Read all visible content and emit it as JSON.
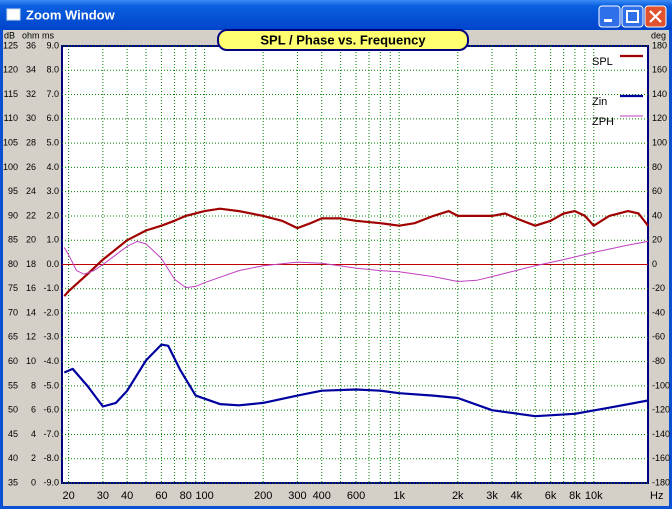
{
  "window": {
    "title": "Zoom Window"
  },
  "chart_data": {
    "type": "line",
    "title": "SPL / Phase vs. Frequency",
    "x_label": "Hz",
    "y_label": "dB",
    "ohm_label": "ohm",
    "ms_label": "ms",
    "y2_label": "deg",
    "log_x": true,
    "grid": true,
    "grid_color": "#008000",
    "zero_line_color": "#c00000",
    "xlim": [
      18.5,
      19000
    ],
    "xticks": [
      20,
      30,
      40,
      60,
      80,
      100,
      200,
      300,
      400,
      600,
      {
        "value": 1000,
        "label": "1k"
      },
      {
        "value": 2000,
        "label": "2k"
      },
      {
        "value": 3000,
        "label": "3k"
      },
      {
        "value": 4000,
        "label": "4k"
      },
      {
        "value": 6000,
        "label": "6k"
      },
      {
        "value": 8000,
        "label": "8k"
      },
      {
        "value": 10000,
        "label": "10k"
      }
    ],
    "xminor": [
      50,
      70,
      90,
      500,
      700,
      800,
      900,
      5000,
      7000,
      9000
    ],
    "ylim": [
      35,
      125
    ],
    "yticks": [
      125,
      120,
      115,
      110,
      105,
      100,
      95,
      90,
      85,
      80,
      75,
      70,
      65,
      60,
      55,
      50,
      45,
      40,
      35
    ],
    "ohm_lim": [
      0,
      36
    ],
    "ohm_ticks": [
      36,
      34,
      32,
      30,
      28,
      26,
      24,
      22,
      20,
      18,
      16,
      14,
      12,
      10,
      8,
      6,
      4,
      2,
      0
    ],
    "ms_lim": [
      -9,
      9
    ],
    "ms_ticks": [
      {
        "value": 9,
        "label": "9.0"
      },
      {
        "value": 8,
        "label": "8.0"
      },
      {
        "value": 7,
        "label": "7.0"
      },
      {
        "value": 6,
        "label": "6.0"
      },
      {
        "value": 5,
        "label": "5.0"
      },
      {
        "value": 4,
        "label": "4.0"
      },
      {
        "value": 3,
        "label": "3.0"
      },
      {
        "value": 2,
        "label": "2.0"
      },
      {
        "value": 1,
        "label": "1.0"
      },
      {
        "value": 0,
        "label": "0.0"
      },
      {
        "value": -1,
        "label": "-1.0"
      },
      {
        "value": -2,
        "label": "-2.0"
      },
      {
        "value": -3,
        "label": "-3.0"
      },
      {
        "value": -4,
        "label": "-4.0"
      },
      {
        "value": -5,
        "label": "-5.0"
      },
      {
        "value": -6,
        "label": "-6.0"
      },
      {
        "value": -7,
        "label": "-7.0"
      },
      {
        "value": -8,
        "label": "-8.0"
      },
      {
        "value": -9,
        "label": "-9.0"
      }
    ],
    "y2lim": [
      -180,
      180
    ],
    "y2ticks": [
      180,
      160,
      140,
      120,
      100,
      80,
      60,
      40,
      20,
      0,
      -20,
      -40,
      -60,
      -80,
      -100,
      -120,
      -140,
      -160,
      -180
    ],
    "series": [
      {
        "name": "SPL",
        "color": "#a00000",
        "axis": "y",
        "x": [
          19,
          20,
          25,
          30,
          40,
          50,
          60,
          70,
          80,
          100,
          120,
          150,
          200,
          250,
          300,
          350,
          400,
          500,
          600,
          800,
          1000,
          1200,
          1500,
          1800,
          2000,
          3000,
          3500,
          4000,
          5000,
          6000,
          7000,
          8000,
          9000,
          10000,
          12000,
          15000,
          17000,
          19000
        ],
        "values": [
          73.5,
          74.5,
          78,
          81,
          85,
          87,
          88,
          89,
          90,
          91,
          91.5,
          91,
          90,
          89,
          87.5,
          88.5,
          89.5,
          89.5,
          89,
          88.5,
          88,
          88.5,
          90,
          91,
          90,
          90,
          90.5,
          89.5,
          88,
          89,
          90.5,
          91,
          90,
          88,
          90,
          91,
          90.5,
          88
        ]
      },
      {
        "name": "Zin",
        "color": "#0000a0",
        "axis": "ohm",
        "x": [
          19,
          21,
          25,
          30,
          35,
          40,
          50,
          60,
          65,
          75,
          90,
          120,
          150,
          200,
          300,
          400,
          600,
          800,
          1000,
          1500,
          2000,
          3000,
          5000,
          8000,
          12000,
          19000
        ],
        "values": [
          9.1,
          9.4,
          8.0,
          6.3,
          6.6,
          7.6,
          10.1,
          11.4,
          11.3,
          9.3,
          7.2,
          6.5,
          6.4,
          6.6,
          7.2,
          7.6,
          7.7,
          7.6,
          7.4,
          7.2,
          7.0,
          6.0,
          5.5,
          5.7,
          6.2,
          6.8
        ]
      },
      {
        "name": "ZPH",
        "color": "#c040c0",
        "axis": "y2",
        "x": [
          19,
          20,
          22,
          24,
          27,
          30,
          35,
          40,
          45,
          50,
          60,
          70,
          80,
          90,
          100,
          150,
          200,
          300,
          400,
          600,
          800,
          1000,
          1500,
          2000,
          2500,
          3000,
          5000,
          7000,
          10000,
          15000,
          19000
        ],
        "values": [
          14,
          8,
          -5,
          -8,
          -5,
          0,
          8,
          15,
          19,
          17,
          5,
          -12,
          -19,
          -18,
          -15,
          -5,
          -1,
          2,
          1,
          -3,
          -5,
          -6,
          -10,
          -14,
          -13,
          -10,
          -1,
          4,
          10,
          16,
          19
        ]
      }
    ]
  }
}
